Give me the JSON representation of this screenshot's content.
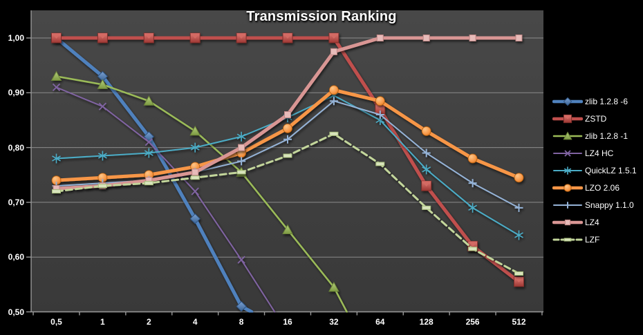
{
  "chart_data": {
    "type": "line",
    "title": "Transmission Ranking",
    "xlabel": "",
    "ylabel": "",
    "categories": [
      "0,5",
      "1",
      "2",
      "4",
      "8",
      "16",
      "32",
      "64",
      "128",
      "256",
      "512"
    ],
    "y_ticks": [
      {
        "label": "1,00",
        "value": 1.0
      },
      {
        "label": "0,90",
        "value": 0.9
      },
      {
        "label": "0,80",
        "value": 0.8
      },
      {
        "label": "0,70",
        "value": 0.7
      },
      {
        "label": "0,60",
        "value": 0.6
      },
      {
        "label": "0,50",
        "value": 0.5
      }
    ],
    "ylim": [
      0.5,
      1.05
    ],
    "grid": "horizontal",
    "legend_position": "right",
    "series": [
      {
        "name": "zlib 1.2.8 -6",
        "color": "#4F81BD",
        "marker": "diamond",
        "width": 5,
        "dashed": false,
        "values": [
          1.0,
          0.93,
          0.82,
          0.67,
          0.51,
          null,
          null,
          null,
          null,
          null,
          null
        ],
        "axis_exit_index": 4.22
      },
      {
        "name": "ZSTD",
        "color": "#C0504D",
        "marker": "square",
        "width": 5,
        "dashed": false,
        "values": [
          1.0,
          1.0,
          1.0,
          1.0,
          1.0,
          1.0,
          1.0,
          0.87,
          0.73,
          0.62,
          0.555
        ],
        "axis_exit_index": null
      },
      {
        "name": "zlib 1.2.8 -1",
        "color": "#9BBB59",
        "marker": "triangle",
        "width": 2.5,
        "dashed": false,
        "values": [
          0.93,
          0.915,
          0.885,
          0.83,
          0.755,
          0.65,
          0.545,
          null,
          null,
          null,
          null
        ],
        "axis_exit_index": 6.28
      },
      {
        "name": "LZ4 HC",
        "color": "#8064A2",
        "marker": "x",
        "width": 2,
        "dashed": false,
        "values": [
          0.91,
          0.875,
          0.81,
          0.72,
          0.595,
          null,
          null,
          null,
          null,
          null,
          null
        ],
        "axis_exit_index": 4.72
      },
      {
        "name": "QuickLZ 1.5.1",
        "color": "#4BACC6",
        "marker": "asterisk",
        "width": 2,
        "dashed": false,
        "values": [
          0.78,
          0.785,
          0.79,
          0.8,
          0.82,
          0.855,
          0.895,
          0.85,
          0.76,
          0.69,
          0.64
        ],
        "axis_exit_index": null
      },
      {
        "name": "LZO 2.06",
        "color": "#F79646",
        "marker": "circle",
        "width": 5,
        "dashed": false,
        "values": [
          0.74,
          0.745,
          0.75,
          0.765,
          0.79,
          0.835,
          0.905,
          0.885,
          0.83,
          0.78,
          0.745
        ],
        "axis_exit_index": null
      },
      {
        "name": "Snappy 1.1.0",
        "color": "#95B3D7",
        "marker": "plus",
        "width": 2,
        "dashed": false,
        "values": [
          0.73,
          0.735,
          0.74,
          0.755,
          0.775,
          0.815,
          0.885,
          0.86,
          0.79,
          0.735,
          0.69
        ],
        "axis_exit_index": null
      },
      {
        "name": "LZ4",
        "color": "#D99694",
        "marker": "small-square",
        "width": 5,
        "dashed": false,
        "values": [
          0.725,
          0.73,
          0.74,
          0.755,
          0.8,
          0.86,
          0.975,
          1.0,
          1.0,
          1.0,
          1.0
        ],
        "axis_exit_index": null
      },
      {
        "name": "LZF",
        "color": "#C3D69B",
        "marker": "dash",
        "width": 3,
        "dashed": true,
        "values": [
          0.72,
          0.73,
          0.735,
          0.745,
          0.755,
          0.785,
          0.825,
          0.77,
          0.69,
          0.615,
          0.57
        ],
        "axis_exit_index": null
      }
    ],
    "colors": {
      "outer_background": "#000000",
      "wall_top": "#484848",
      "wall_bottom": "#393939",
      "gridline": "#a6a6a6",
      "axis_line": "#9a9a9a",
      "label_text": "#ffffff"
    }
  }
}
